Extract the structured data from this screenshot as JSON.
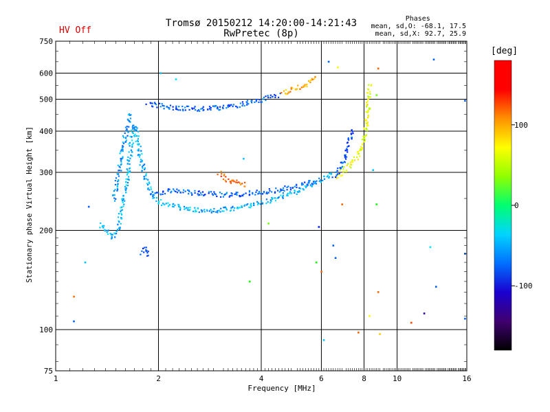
{
  "title": {
    "line1": "Tromsø 20150212 14:20:00-14:21:43",
    "line2": "RwPretec (8p)"
  },
  "status": {
    "hv": "HV Off"
  },
  "phase_stats": {
    "heading": "Phases",
    "line_o": "mean, sd,O: -68.1, 17.5",
    "line_x": "mean, sd,X:  92.7, 25.9"
  },
  "colorbar": {
    "label": "[deg]",
    "range": [
      -180,
      180
    ],
    "ticks": [
      100,
      0,
      -100
    ],
    "colors": [
      "#000000",
      "#400070",
      "#1a00d0",
      "#0070ff",
      "#00d4ff",
      "#00ff70",
      "#90ff00",
      "#ffff00",
      "#ff9000",
      "#ff0000",
      "#ff0000"
    ]
  },
  "chart_data": {
    "type": "scatter",
    "xlabel": "Frequency [MHz]",
    "ylabel": "Stationary phase Virtual Height [km]",
    "xscale": "log",
    "yscale": "log",
    "xlim": [
      1,
      16
    ],
    "ylim": [
      75,
      750
    ],
    "xticks": [
      1,
      2,
      4,
      6,
      8,
      10,
      16
    ],
    "xtick_labels": [
      "1",
      "2",
      "4",
      "6",
      "8",
      "10",
      "16"
    ],
    "yticks": [
      75,
      100,
      200,
      300,
      400,
      500,
      600,
      750
    ],
    "ytick_labels": [
      "75",
      "100",
      "200",
      "300",
      "400",
      "500",
      "600",
      "750"
    ],
    "grid": true,
    "traces": [
      {
        "x": [
          1.34,
          1.4,
          1.46,
          1.52,
          1.57,
          1.62,
          1.66,
          1.7,
          1.76,
          1.82,
          1.9,
          2.0,
          2.2,
          2.5,
          2.8,
          3.1,
          3.4,
          3.7,
          4.0,
          4.3,
          4.6,
          5.0,
          5.3,
          5.6,
          5.9,
          6.2,
          6.5
        ],
        "y": [
          210,
          200,
          190,
          205,
          245,
          300,
          380,
          420,
          340,
          290,
          260,
          245,
          238,
          232,
          230,
          232,
          235,
          240,
          244,
          250,
          256,
          262,
          270,
          277,
          285,
          294,
          302
        ],
        "phase": -75
      },
      {
        "x": [
          1.9,
          2.0,
          2.2,
          2.4,
          2.7,
          3.0,
          3.3,
          3.6,
          3.9,
          4.2,
          4.5,
          4.8,
          5.1,
          5.4,
          5.7
        ],
        "y": [
          258,
          262,
          265,
          262,
          260,
          258,
          258,
          260,
          262,
          264,
          267,
          270,
          274,
          278,
          283
        ],
        "phase": -100
      },
      {
        "x": [
          1.85,
          1.95,
          2.1,
          2.3,
          2.5,
          2.7,
          2.9,
          3.1,
          3.3,
          3.5,
          3.7,
          3.9,
          4.1,
          4.3,
          4.5
        ],
        "y": [
          488,
          482,
          476,
          472,
          470,
          470,
          472,
          475,
          480,
          486,
          492,
          498,
          505,
          512,
          520
        ],
        "phase": -100
      },
      {
        "x": [
          4.6,
          4.8,
          5.0,
          5.2,
          5.4,
          5.6,
          5.8
        ],
        "y": [
          525,
          532,
          540,
          548,
          558,
          570,
          585
        ],
        "phase": 130
      },
      {
        "x": [
          3.0,
          3.1,
          3.2,
          3.3,
          3.4,
          3.5,
          3.6
        ],
        "y": [
          300,
          292,
          286,
          282,
          280,
          278,
          276
        ],
        "phase": 150
      },
      {
        "x": [
          6.6,
          6.9,
          7.2,
          7.5,
          7.8,
          8.0,
          8.1,
          8.2,
          8.25
        ],
        "y": [
          292,
          303,
          315,
          330,
          355,
          390,
          430,
          480,
          560
        ],
        "phase": 95
      },
      {
        "x": [
          6.5,
          6.7,
          6.9,
          7.05,
          7.2,
          7.35
        ],
        "y": [
          290,
          305,
          325,
          348,
          375,
          410
        ],
        "phase": -105
      },
      {
        "x": [
          1.47,
          1.52,
          1.56,
          1.6,
          1.64
        ],
        "y": [
          250,
          300,
          350,
          400,
          460
        ],
        "phase": -85
      },
      {
        "x": [
          1.78,
          1.82,
          1.86
        ],
        "y": [
          172,
          178,
          168
        ],
        "phase": -110
      }
    ],
    "scattered_points": [
      {
        "x": 1.13,
        "y": 106,
        "phase": -100
      },
      {
        "x": 1.13,
        "y": 126,
        "phase": 150
      },
      {
        "x": 1.22,
        "y": 160,
        "phase": -70
      },
      {
        "x": 1.25,
        "y": 236,
        "phase": -100
      },
      {
        "x": 2.03,
        "y": 600,
        "phase": -70
      },
      {
        "x": 2.25,
        "y": 575,
        "phase": -60
      },
      {
        "x": 3.55,
        "y": 330,
        "phase": -70
      },
      {
        "x": 3.7,
        "y": 140,
        "phase": 30
      },
      {
        "x": 4.2,
        "y": 210,
        "phase": 60
      },
      {
        "x": 5.9,
        "y": 205,
        "phase": -120
      },
      {
        "x": 5.8,
        "y": 160,
        "phase": 30
      },
      {
        "x": 6.0,
        "y": 150,
        "phase": 150
      },
      {
        "x": 6.1,
        "y": 93,
        "phase": -70
      },
      {
        "x": 6.5,
        "y": 180,
        "phase": -100
      },
      {
        "x": 6.6,
        "y": 165,
        "phase": -100
      },
      {
        "x": 6.9,
        "y": 240,
        "phase": 150
      },
      {
        "x": 6.3,
        "y": 650,
        "phase": -100
      },
      {
        "x": 6.7,
        "y": 625,
        "phase": 100
      },
      {
        "x": 7.7,
        "y": 98,
        "phase": 150
      },
      {
        "x": 8.3,
        "y": 110,
        "phase": 100
      },
      {
        "x": 8.5,
        "y": 305,
        "phase": -70
      },
      {
        "x": 8.7,
        "y": 240,
        "phase": 30
      },
      {
        "x": 8.7,
        "y": 515,
        "phase": 60
      },
      {
        "x": 8.8,
        "y": 620,
        "phase": 150
      },
      {
        "x": 8.8,
        "y": 130,
        "phase": 150
      },
      {
        "x": 8.9,
        "y": 97,
        "phase": 120
      },
      {
        "x": 11.0,
        "y": 105,
        "phase": 160
      },
      {
        "x": 12.0,
        "y": 112,
        "phase": -150
      },
      {
        "x": 12.5,
        "y": 178,
        "phase": -60
      },
      {
        "x": 12.8,
        "y": 660,
        "phase": -100
      },
      {
        "x": 13.0,
        "y": 135,
        "phase": -100
      },
      {
        "x": 15.8,
        "y": 108,
        "phase": -100
      },
      {
        "x": 15.8,
        "y": 170,
        "phase": -100
      },
      {
        "x": 15.8,
        "y": 495,
        "phase": -100
      }
    ]
  }
}
